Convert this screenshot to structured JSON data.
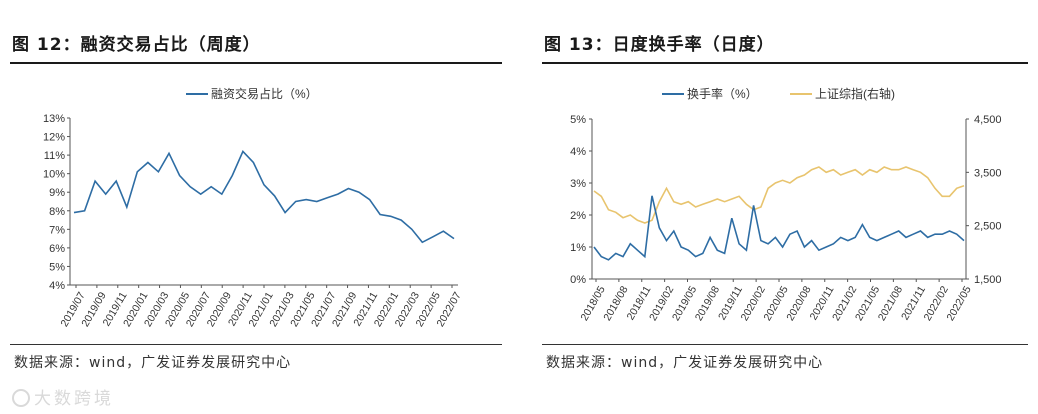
{
  "left": {
    "title": "图 12：融资交易占比（周度）",
    "source": "数据来源：wind，广发证券发展研究中心",
    "chart_data": {
      "type": "line",
      "legend": "top-center",
      "series_name": "融资交易占比（%）",
      "color": "#2e6da4",
      "ylim": [
        4,
        13
      ],
      "y_ticks": [
        "13%",
        "12%",
        "11%",
        "10%",
        "9%",
        "8%",
        "7%",
        "6%",
        "5%",
        "4%"
      ],
      "x_ticks": [
        "2019/07",
        "2019/09",
        "2019/11",
        "2020/01",
        "2020/03",
        "2020/05",
        "2020/07",
        "2020/09",
        "2020/11",
        "2021/01",
        "2021/03",
        "2021/05",
        "2021/07",
        "2021/09",
        "2021/11",
        "2022/01",
        "2022/03",
        "2022/05",
        "2022/07"
      ],
      "x_values": [
        0,
        1,
        2,
        3,
        4,
        5,
        6,
        7,
        8,
        9,
        10,
        11,
        12,
        13,
        14,
        15,
        16,
        17,
        18,
        19,
        20,
        21,
        22,
        23,
        24,
        25,
        26,
        27,
        28,
        29,
        30,
        31,
        32,
        33,
        34,
        35,
        36
      ],
      "values": [
        7.9,
        8.0,
        9.6,
        8.9,
        9.6,
        8.2,
        10.1,
        10.6,
        10.1,
        11.1,
        9.9,
        9.3,
        8.9,
        9.3,
        8.9,
        9.9,
        11.2,
        10.6,
        9.4,
        8.8,
        7.9,
        8.5,
        8.6,
        8.5,
        8.7,
        8.9,
        9.2,
        9.0,
        8.6,
        7.8,
        7.7,
        7.5,
        7.0,
        6.3,
        6.6,
        6.9,
        6.5
      ]
    }
  },
  "right": {
    "title": "图 13：日度换手率（日度）",
    "source": "数据来源：wind，广发证券发展研究中心",
    "chart_data": {
      "type": "line",
      "legend": "top-center",
      "y_left_ticks": [
        "5%",
        "4%",
        "3%",
        "2%",
        "1%",
        "0%"
      ],
      "y_right_ticks": [
        "4,500",
        "3,500",
        "2,500",
        "1,500"
      ],
      "ylim_left": [
        0,
        5
      ],
      "ylim_right": [
        1500,
        4500
      ],
      "x_ticks": [
        "2018/05",
        "2018/08",
        "2018/11",
        "2019/02",
        "2019/05",
        "2019/08",
        "2019/11",
        "2020/02",
        "2020/05",
        "2020/08",
        "2020/11",
        "2021/02",
        "2021/05",
        "2021/08",
        "2021/11",
        "2022/02",
        "2022/05"
      ],
      "x_values": [
        0,
        1,
        2,
        3,
        4,
        5,
        6,
        7,
        8,
        9,
        10,
        11,
        12,
        13,
        14,
        15,
        16,
        17,
        18,
        19,
        20,
        21,
        22,
        23,
        24,
        25,
        26,
        27,
        28,
        29,
        30,
        31,
        32,
        33,
        34,
        35,
        36,
        37,
        38,
        39,
        40,
        41,
        42,
        43,
        44,
        45,
        46,
        47,
        48,
        49,
        50,
        51
      ],
      "series": [
        {
          "name": "换手率（%）",
          "color": "#2e6da4",
          "axis": "left",
          "values": [
            1.0,
            0.7,
            0.6,
            0.8,
            0.7,
            1.1,
            0.9,
            0.7,
            2.6,
            1.6,
            1.2,
            1.5,
            1.0,
            0.9,
            0.7,
            0.8,
            1.3,
            0.9,
            0.8,
            1.9,
            1.1,
            0.9,
            2.3,
            1.2,
            1.1,
            1.3,
            1.0,
            1.4,
            1.5,
            1.0,
            1.2,
            0.9,
            1.0,
            1.1,
            1.3,
            1.2,
            1.3,
            1.7,
            1.3,
            1.2,
            1.3,
            1.4,
            1.5,
            1.3,
            1.4,
            1.5,
            1.3,
            1.4,
            1.4,
            1.5,
            1.4,
            1.2
          ]
        },
        {
          "name": "上证综指(右轴)",
          "color": "#e8c46e",
          "axis": "right",
          "values": [
            3150,
            3050,
            2800,
            2750,
            2650,
            2700,
            2600,
            2550,
            2600,
            2950,
            3200,
            2950,
            2900,
            2950,
            2850,
            2900,
            2950,
            3000,
            2950,
            3000,
            3050,
            2900,
            2800,
            2850,
            3200,
            3300,
            3350,
            3300,
            3400,
            3450,
            3550,
            3600,
            3500,
            3550,
            3450,
            3500,
            3550,
            3450,
            3550,
            3500,
            3600,
            3550,
            3550,
            3600,
            3550,
            3500,
            3400,
            3200,
            3050,
            3050,
            3200,
            3250
          ]
        }
      ]
    }
  }
}
